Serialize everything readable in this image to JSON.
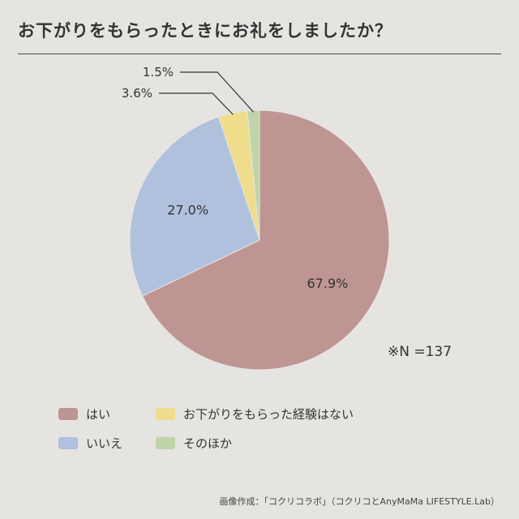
{
  "title": "お下がりをもらったときにお礼をしましたか？",
  "note": "※N =137",
  "footer": "画像作成：「コクリコラボ」（コクリコとAnyMaMa LIFESTYLE.Lab）",
  "chart_data": {
    "type": "pie",
    "categories": [
      "はい",
      "いいえ",
      "お下がりをもらった経験はない",
      "そのほか"
    ],
    "values": [
      67.9,
      27.0,
      3.6,
      1.5
    ],
    "labels": [
      "67.9%",
      "27.0%",
      "3.6%",
      "1.5%"
    ],
    "colors": [
      "#bf9593",
      "#b0c1de",
      "#f0dd8c",
      "#bfd4a8"
    ],
    "legend_placement": "bottom"
  }
}
